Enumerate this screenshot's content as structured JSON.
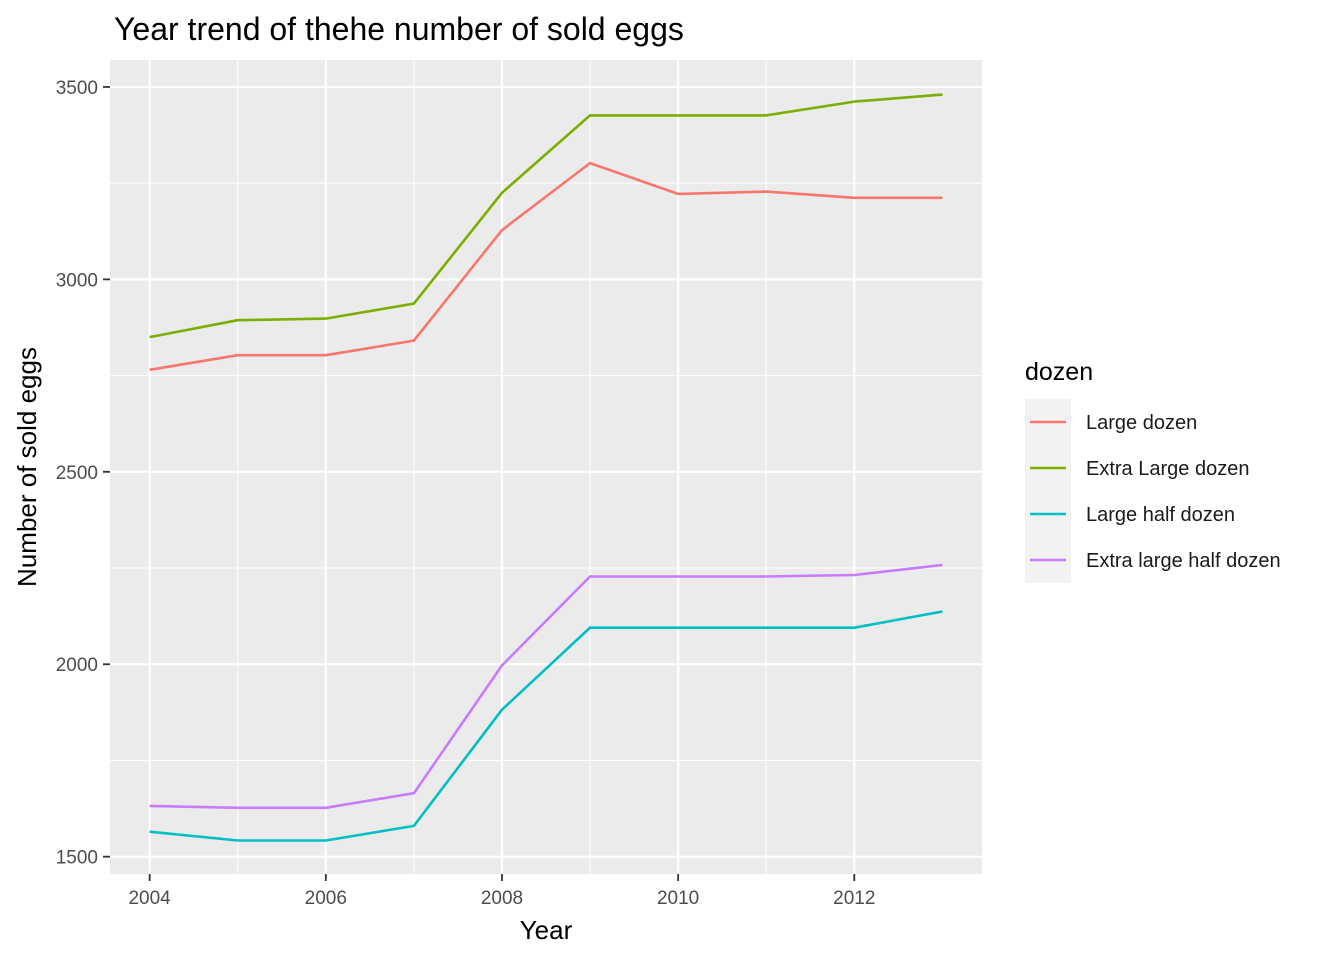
{
  "chart_data": {
    "type": "line",
    "title": "Year trend of thehe number of sold eggs",
    "xlabel": "Year",
    "ylabel": "Number of sold eggs",
    "x": [
      2004,
      2005,
      2006,
      2007,
      2008,
      2009,
      2010,
      2011,
      2012,
      2013
    ],
    "xlim": [
      2003.55,
      2013.45
    ],
    "ylim": [
      1455,
      3570
    ],
    "x_ticks": [
      2004,
      2006,
      2008,
      2010,
      2012
    ],
    "y_ticks": [
      1500,
      2000,
      2500,
      3000,
      3500
    ],
    "grid": true,
    "legend": {
      "title": "dozen",
      "position": "right"
    },
    "series": [
      {
        "name": "Large dozen",
        "color": "#F8766D",
        "values": [
          2765,
          2803,
          2803,
          2841,
          3128,
          3302,
          3222,
          3228,
          3212,
          3212
        ]
      },
      {
        "name": "Extra Large dozen",
        "color": "#7CAE00",
        "values": [
          2850,
          2894,
          2898,
          2937,
          3225,
          3426,
          3426,
          3426,
          3462,
          3480
        ]
      },
      {
        "name": "Large half dozen",
        "color": "#00BFC4",
        "values": [
          1565,
          1542,
          1542,
          1580,
          1882,
          2095,
          2095,
          2095,
          2095,
          2137
        ]
      },
      {
        "name": "Extra large half dozen",
        "color": "#C77CFF",
        "values": [
          1632,
          1627,
          1627,
          1665,
          1997,
          2228,
          2228,
          2228,
          2232,
          2258
        ]
      }
    ]
  }
}
